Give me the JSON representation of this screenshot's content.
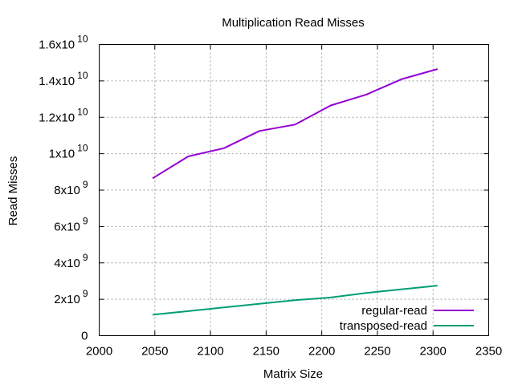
{
  "chart_data": {
    "type": "line",
    "title": "Multiplication Read Misses",
    "xlabel": "Matrix Size",
    "ylabel": "Read Misses",
    "xlim": [
      2000,
      2350
    ],
    "ylim": [
      0,
      16000000000
    ],
    "x_ticks": [
      "2000",
      "2050",
      "2100",
      "2150",
      "2200",
      "2250",
      "2300",
      "2350"
    ],
    "y_ticks": [
      {
        "mant": "0",
        "exp": ""
      },
      {
        "mant": "2x10",
        "exp": "9"
      },
      {
        "mant": "4x10",
        "exp": "9"
      },
      {
        "mant": "6x10",
        "exp": "9"
      },
      {
        "mant": "8x10",
        "exp": "9"
      },
      {
        "mant": "1x10",
        "exp": "10"
      },
      {
        "mant": "1.2x10",
        "exp": "10"
      },
      {
        "mant": "1.4x10",
        "exp": "10"
      },
      {
        "mant": "1.6x10",
        "exp": "10"
      }
    ],
    "grid": true,
    "legend_position": "bottom-right",
    "series": [
      {
        "name": "regular-read",
        "color": "#9400d3",
        "x": [
          2048,
          2080,
          2112,
          2144,
          2176,
          2208,
          2240,
          2272,
          2304
        ],
        "y": [
          8650000000,
          9850000000,
          10300000000,
          11250000000,
          11600000000,
          12650000000,
          13250000000,
          14100000000,
          14650000000
        ]
      },
      {
        "name": "transposed-read",
        "color": "#009e73",
        "x": [
          2048,
          2080,
          2112,
          2144,
          2176,
          2208,
          2240,
          2272,
          2304
        ],
        "y": [
          1150000000,
          1350000000,
          1550000000,
          1750000000,
          1950000000,
          2100000000,
          2350000000,
          2550000000,
          2750000000
        ]
      }
    ]
  }
}
